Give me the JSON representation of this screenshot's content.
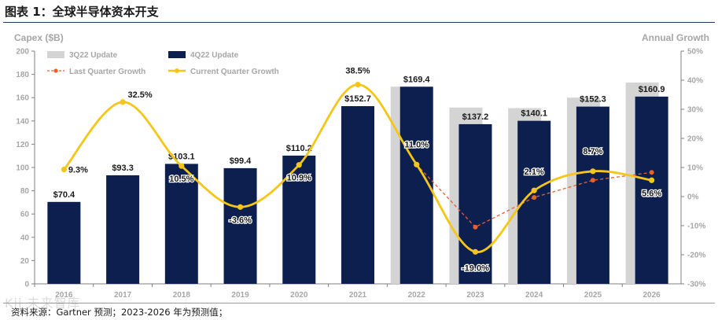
{
  "figure_title": "图表 1：全球半导体资本开支",
  "source_note": "资料来源：Gartner 预测；2023-2026 年为预测值；",
  "watermark_text": "Kii 未来智库",
  "colors": {
    "bar_3q22": "#d4d4d4",
    "bar_4q22": "#0c1f4f",
    "current_growth": "#f5c518",
    "last_growth": "#e8602c",
    "axis_label": "#a6a6a6",
    "title_rule": "#1f3864"
  },
  "chart_data": {
    "type": "bar",
    "categories": [
      "2016",
      "2017",
      "2018",
      "2019",
      "2020",
      "2021",
      "2022",
      "2023",
      "2024",
      "2025",
      "2026"
    ],
    "ylabel_left": "Capex ($B)",
    "ylabel_right": "Annual Growth",
    "ylim_left": [
      0,
      200
    ],
    "yticks_left": [
      0,
      20,
      40,
      60,
      80,
      100,
      120,
      140,
      160,
      180,
      200
    ],
    "ylim_right": [
      -30,
      50
    ],
    "yticks_right": [
      "-30%",
      "-20%",
      "-10%",
      "0%",
      "10%",
      "20%",
      "30%",
      "40%",
      "50%"
    ],
    "yticks_right_values": [
      -30,
      -20,
      -10,
      0,
      10,
      20,
      30,
      40,
      50
    ],
    "grid": false,
    "legend_placement": "top-left",
    "bar_series": [
      {
        "name": "3Q22 Update",
        "values": [
          null,
          null,
          null,
          null,
          null,
          null,
          169.4,
          151.5,
          151.0,
          160.0,
          173.0
        ]
      },
      {
        "name": "4Q22 Update",
        "values": [
          70.4,
          93.3,
          103.1,
          99.4,
          110.2,
          152.7,
          169.4,
          137.2,
          140.1,
          152.3,
          160.9
        ],
        "labels": [
          "$70.4",
          "$93.3",
          "$103.1",
          "$99.4",
          "$110.2",
          "$152.7",
          "$169.4",
          "$137.2",
          "$140.1",
          "$152.3",
          "$160.9"
        ]
      }
    ],
    "line_series": [
      {
        "name": "Last Quarter Growth",
        "style": "dashed",
        "x_categories": [
          "2022",
          "2023",
          "2024",
          "2025",
          "2026"
        ],
        "values": [
          11.0,
          -10.5,
          -0.3,
          5.6,
          8.3
        ]
      },
      {
        "name": "Current Quarter Growth",
        "style": "solid",
        "values": [
          9.3,
          32.5,
          10.5,
          -3.6,
          10.9,
          38.5,
          11.0,
          -19.0,
          2.1,
          8.7,
          5.6
        ],
        "labels": [
          "9.3%",
          "32.5%",
          "10.5%",
          "-3.6%",
          "10.9%",
          "38.5%",
          "11.0%",
          "-19.0%",
          "2.1%",
          "8.7%",
          "5.6%"
        ]
      }
    ]
  }
}
